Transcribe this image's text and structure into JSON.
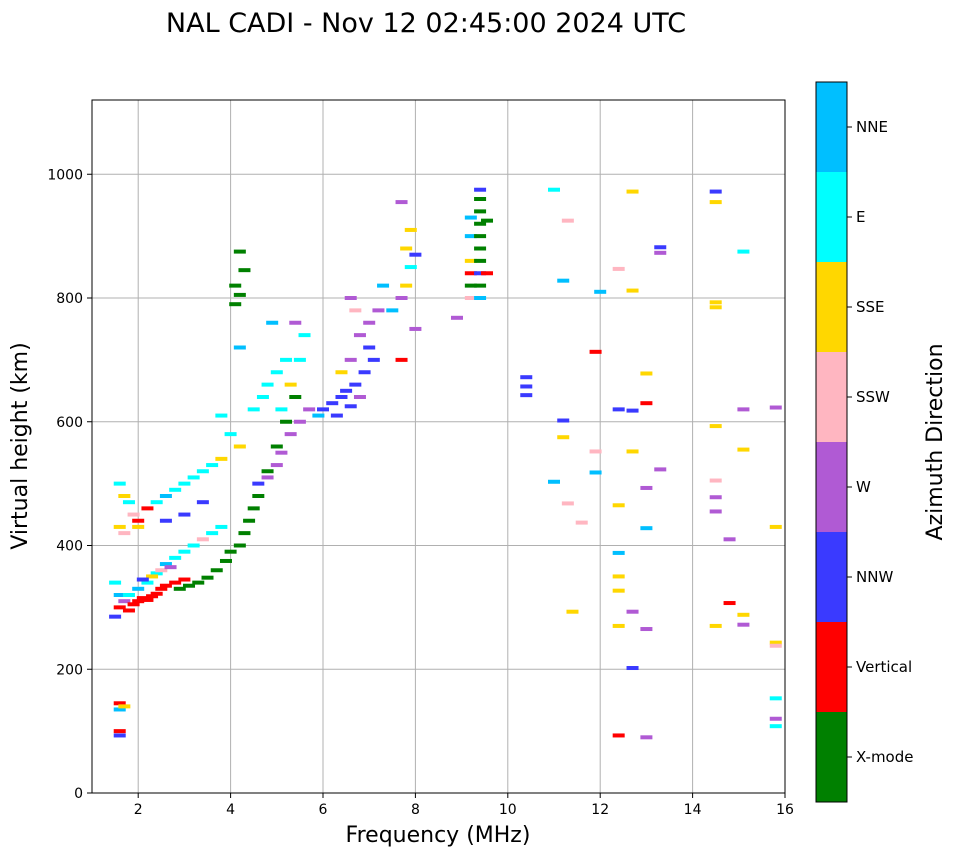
{
  "chart_data": {
    "type": "scatter",
    "title": "NAL CADI - Nov 12 02:45:00 2024 UTC",
    "xlabel": "Frequency (MHz)",
    "ylabel": "Virtual height (km)",
    "xlim": [
      1,
      16
    ],
    "ylim": [
      0,
      1120
    ],
    "xticks": [
      2,
      4,
      6,
      8,
      10,
      12,
      14,
      16
    ],
    "yticks": [
      0,
      200,
      400,
      600,
      800,
      1000
    ],
    "grid": true,
    "colorbar": {
      "title": "Azimuth Direction",
      "categories": [
        {
          "name": "X-mode",
          "color": "#008000"
        },
        {
          "name": "Vertical",
          "color": "#ff0000"
        },
        {
          "name": "NNW",
          "color": "#3a3aff"
        },
        {
          "name": "W",
          "color": "#b05ad4"
        },
        {
          "name": "SSW",
          "color": "#ffb6c1"
        },
        {
          "name": "SSE",
          "color": "#ffd700"
        },
        {
          "name": "E",
          "color": "#00ffff"
        },
        {
          "name": "NNE",
          "color": "#00bfff"
        }
      ]
    },
    "points": [
      {
        "x": 1.6,
        "y": 93,
        "c": "NNW"
      },
      {
        "x": 1.6,
        "y": 100,
        "c": "Vertical"
      },
      {
        "x": 1.6,
        "y": 135,
        "c": "NNE"
      },
      {
        "x": 1.6,
        "y": 145,
        "c": "Vertical"
      },
      {
        "x": 1.7,
        "y": 140,
        "c": "SSE"
      },
      {
        "x": 1.5,
        "y": 285,
        "c": "NNW"
      },
      {
        "x": 1.6,
        "y": 300,
        "c": "Vertical"
      },
      {
        "x": 1.6,
        "y": 320,
        "c": "NNE"
      },
      {
        "x": 1.5,
        "y": 340,
        "c": "E"
      },
      {
        "x": 1.7,
        "y": 310,
        "c": "W"
      },
      {
        "x": 1.8,
        "y": 295,
        "c": "Vertical"
      },
      {
        "x": 1.9,
        "y": 305,
        "c": "Vertical"
      },
      {
        "x": 2.0,
        "y": 310,
        "c": "Vertical"
      },
      {
        "x": 2.1,
        "y": 315,
        "c": "Vertical"
      },
      {
        "x": 2.2,
        "y": 312,
        "c": "Vertical"
      },
      {
        "x": 2.3,
        "y": 318,
        "c": "Vertical"
      },
      {
        "x": 2.4,
        "y": 322,
        "c": "Vertical"
      },
      {
        "x": 2.5,
        "y": 330,
        "c": "Vertical"
      },
      {
        "x": 2.6,
        "y": 335,
        "c": "Vertical"
      },
      {
        "x": 2.8,
        "y": 340,
        "c": "Vertical"
      },
      {
        "x": 3.0,
        "y": 345,
        "c": "Vertical"
      },
      {
        "x": 2.9,
        "y": 330,
        "c": "X-mode"
      },
      {
        "x": 3.1,
        "y": 335,
        "c": "X-mode"
      },
      {
        "x": 3.3,
        "y": 340,
        "c": "X-mode"
      },
      {
        "x": 3.5,
        "y": 348,
        "c": "X-mode"
      },
      {
        "x": 3.7,
        "y": 360,
        "c": "X-mode"
      },
      {
        "x": 3.9,
        "y": 375,
        "c": "X-mode"
      },
      {
        "x": 4.0,
        "y": 390,
        "c": "X-mode"
      },
      {
        "x": 4.2,
        "y": 400,
        "c": "X-mode"
      },
      {
        "x": 4.3,
        "y": 420,
        "c": "X-mode"
      },
      {
        "x": 4.4,
        "y": 440,
        "c": "X-mode"
      },
      {
        "x": 4.5,
        "y": 460,
        "c": "X-mode"
      },
      {
        "x": 4.6,
        "y": 480,
        "c": "X-mode"
      },
      {
        "x": 4.8,
        "y": 520,
        "c": "X-mode"
      },
      {
        "x": 5.0,
        "y": 560,
        "c": "X-mode"
      },
      {
        "x": 5.2,
        "y": 600,
        "c": "X-mode"
      },
      {
        "x": 5.4,
        "y": 640,
        "c": "X-mode"
      },
      {
        "x": 4.1,
        "y": 790,
        "c": "X-mode"
      },
      {
        "x": 4.1,
        "y": 820,
        "c": "X-mode"
      },
      {
        "x": 4.2,
        "y": 805,
        "c": "X-mode"
      },
      {
        "x": 4.3,
        "y": 845,
        "c": "X-mode"
      },
      {
        "x": 4.2,
        "y": 875,
        "c": "X-mode"
      },
      {
        "x": 1.8,
        "y": 320,
        "c": "E"
      },
      {
        "x": 2.0,
        "y": 330,
        "c": "NNE"
      },
      {
        "x": 2.2,
        "y": 340,
        "c": "E"
      },
      {
        "x": 2.4,
        "y": 355,
        "c": "E"
      },
      {
        "x": 2.6,
        "y": 370,
        "c": "NNE"
      },
      {
        "x": 2.8,
        "y": 380,
        "c": "E"
      },
      {
        "x": 3.0,
        "y": 390,
        "c": "E"
      },
      {
        "x": 3.2,
        "y": 400,
        "c": "E"
      },
      {
        "x": 3.4,
        "y": 410,
        "c": "SSW"
      },
      {
        "x": 3.6,
        "y": 420,
        "c": "E"
      },
      {
        "x": 3.8,
        "y": 430,
        "c": "E"
      },
      {
        "x": 2.5,
        "y": 360,
        "c": "SSW"
      },
      {
        "x": 2.7,
        "y": 365,
        "c": "W"
      },
      {
        "x": 2.3,
        "y": 350,
        "c": "SSE"
      },
      {
        "x": 2.1,
        "y": 345,
        "c": "NNW"
      },
      {
        "x": 1.6,
        "y": 500,
        "c": "E"
      },
      {
        "x": 1.7,
        "y": 480,
        "c": "SSE"
      },
      {
        "x": 1.8,
        "y": 470,
        "c": "E"
      },
      {
        "x": 1.9,
        "y": 450,
        "c": "SSW"
      },
      {
        "x": 2.0,
        "y": 440,
        "c": "Vertical"
      },
      {
        "x": 2.2,
        "y": 460,
        "c": "Vertical"
      },
      {
        "x": 2.4,
        "y": 470,
        "c": "E"
      },
      {
        "x": 2.6,
        "y": 480,
        "c": "NNE"
      },
      {
        "x": 2.8,
        "y": 490,
        "c": "E"
      },
      {
        "x": 3.0,
        "y": 500,
        "c": "E"
      },
      {
        "x": 3.2,
        "y": 510,
        "c": "E"
      },
      {
        "x": 3.4,
        "y": 520,
        "c": "E"
      },
      {
        "x": 3.6,
        "y": 530,
        "c": "E"
      },
      {
        "x": 3.8,
        "y": 540,
        "c": "SSE"
      },
      {
        "x": 1.6,
        "y": 430,
        "c": "SSE"
      },
      {
        "x": 1.7,
        "y": 420,
        "c": "SSW"
      },
      {
        "x": 2.0,
        "y": 430,
        "c": "SSE"
      },
      {
        "x": 2.6,
        "y": 440,
        "c": "NNW"
      },
      {
        "x": 3.0,
        "y": 450,
        "c": "NNW"
      },
      {
        "x": 3.4,
        "y": 470,
        "c": "NNW"
      },
      {
        "x": 4.0,
        "y": 580,
        "c": "E"
      },
      {
        "x": 4.2,
        "y": 560,
        "c": "SSE"
      },
      {
        "x": 3.8,
        "y": 610,
        "c": "E"
      },
      {
        "x": 4.2,
        "y": 720,
        "c": "NNE"
      },
      {
        "x": 4.5,
        "y": 620,
        "c": "E"
      },
      {
        "x": 4.7,
        "y": 640,
        "c": "E"
      },
      {
        "x": 4.8,
        "y": 660,
        "c": "E"
      },
      {
        "x": 5.0,
        "y": 680,
        "c": "E"
      },
      {
        "x": 5.2,
        "y": 700,
        "c": "E"
      },
      {
        "x": 5.1,
        "y": 620,
        "c": "E"
      },
      {
        "x": 5.3,
        "y": 660,
        "c": "SSE"
      },
      {
        "x": 5.5,
        "y": 700,
        "c": "E"
      },
      {
        "x": 5.6,
        "y": 740,
        "c": "E"
      },
      {
        "x": 5.4,
        "y": 760,
        "c": "W"
      },
      {
        "x": 4.9,
        "y": 760,
        "c": "NNE"
      },
      {
        "x": 4.6,
        "y": 500,
        "c": "NNW"
      },
      {
        "x": 4.8,
        "y": 510,
        "c": "W"
      },
      {
        "x": 5.0,
        "y": 530,
        "c": "W"
      },
      {
        "x": 5.1,
        "y": 550,
        "c": "W"
      },
      {
        "x": 5.3,
        "y": 580,
        "c": "W"
      },
      {
        "x": 5.5,
        "y": 600,
        "c": "W"
      },
      {
        "x": 5.7,
        "y": 620,
        "c": "W"
      },
      {
        "x": 5.9,
        "y": 610,
        "c": "NNE"
      },
      {
        "x": 6.0,
        "y": 620,
        "c": "NNW"
      },
      {
        "x": 6.2,
        "y": 630,
        "c": "NNW"
      },
      {
        "x": 6.4,
        "y": 640,
        "c": "NNW"
      },
      {
        "x": 6.5,
        "y": 650,
        "c": "NNW"
      },
      {
        "x": 6.7,
        "y": 660,
        "c": "NNW"
      },
      {
        "x": 6.9,
        "y": 680,
        "c": "NNW"
      },
      {
        "x": 7.1,
        "y": 700,
        "c": "NNW"
      },
      {
        "x": 6.3,
        "y": 610,
        "c": "NNW"
      },
      {
        "x": 6.6,
        "y": 625,
        "c": "NNW"
      },
      {
        "x": 6.8,
        "y": 640,
        "c": "W"
      },
      {
        "x": 7.0,
        "y": 720,
        "c": "NNW"
      },
      {
        "x": 6.4,
        "y": 680,
        "c": "SSE"
      },
      {
        "x": 6.6,
        "y": 700,
        "c": "W"
      },
      {
        "x": 6.8,
        "y": 740,
        "c": "W"
      },
      {
        "x": 7.0,
        "y": 760,
        "c": "W"
      },
      {
        "x": 7.2,
        "y": 780,
        "c": "W"
      },
      {
        "x": 6.7,
        "y": 780,
        "c": "SSW"
      },
      {
        "x": 6.6,
        "y": 800,
        "c": "W"
      },
      {
        "x": 7.3,
        "y": 820,
        "c": "NNE"
      },
      {
        "x": 7.7,
        "y": 700,
        "c": "Vertical"
      },
      {
        "x": 7.5,
        "y": 780,
        "c": "NNE"
      },
      {
        "x": 7.7,
        "y": 800,
        "c": "W"
      },
      {
        "x": 7.8,
        "y": 820,
        "c": "SSE"
      },
      {
        "x": 7.9,
        "y": 850,
        "c": "E"
      },
      {
        "x": 8.0,
        "y": 870,
        "c": "NNW"
      },
      {
        "x": 7.8,
        "y": 880,
        "c": "SSE"
      },
      {
        "x": 7.9,
        "y": 910,
        "c": "SSE"
      },
      {
        "x": 7.7,
        "y": 955,
        "c": "W"
      },
      {
        "x": 8.0,
        "y": 750,
        "c": "W"
      },
      {
        "x": 8.9,
        "y": 768,
        "c": "W"
      },
      {
        "x": 9.2,
        "y": 800,
        "c": "SSW"
      },
      {
        "x": 9.2,
        "y": 820,
        "c": "X-mode"
      },
      {
        "x": 9.2,
        "y": 840,
        "c": "Vertical"
      },
      {
        "x": 9.2,
        "y": 860,
        "c": "SSE"
      },
      {
        "x": 9.2,
        "y": 900,
        "c": "NNE"
      },
      {
        "x": 9.2,
        "y": 930,
        "c": "NNE"
      },
      {
        "x": 9.4,
        "y": 800,
        "c": "NNE"
      },
      {
        "x": 9.4,
        "y": 820,
        "c": "X-mode"
      },
      {
        "x": 9.4,
        "y": 840,
        "c": "NNW"
      },
      {
        "x": 9.4,
        "y": 860,
        "c": "X-mode"
      },
      {
        "x": 9.4,
        "y": 880,
        "c": "X-mode"
      },
      {
        "x": 9.4,
        "y": 900,
        "c": "X-mode"
      },
      {
        "x": 9.4,
        "y": 920,
        "c": "X-mode"
      },
      {
        "x": 9.4,
        "y": 940,
        "c": "X-mode"
      },
      {
        "x": 9.4,
        "y": 960,
        "c": "X-mode"
      },
      {
        "x": 9.4,
        "y": 975,
        "c": "NNW"
      },
      {
        "x": 9.55,
        "y": 840,
        "c": "Vertical"
      },
      {
        "x": 9.55,
        "y": 925,
        "c": "X-mode"
      },
      {
        "x": 10.4,
        "y": 643,
        "c": "NNW"
      },
      {
        "x": 10.4,
        "y": 657,
        "c": "NNW"
      },
      {
        "x": 10.4,
        "y": 672,
        "c": "NNW"
      },
      {
        "x": 11.0,
        "y": 975,
        "c": "E"
      },
      {
        "x": 11.2,
        "y": 828,
        "c": "NNE"
      },
      {
        "x": 11.3,
        "y": 925,
        "c": "SSW"
      },
      {
        "x": 11.2,
        "y": 602,
        "c": "NNW"
      },
      {
        "x": 11.2,
        "y": 575,
        "c": "SSE"
      },
      {
        "x": 11.0,
        "y": 503,
        "c": "NNE"
      },
      {
        "x": 11.3,
        "y": 468,
        "c": "SSW"
      },
      {
        "x": 11.6,
        "y": 437,
        "c": "SSW"
      },
      {
        "x": 11.4,
        "y": 293,
        "c": "SSE"
      },
      {
        "x": 11.9,
        "y": 713,
        "c": "Vertical"
      },
      {
        "x": 12.0,
        "y": 810,
        "c": "NNE"
      },
      {
        "x": 11.9,
        "y": 552,
        "c": "SSW"
      },
      {
        "x": 11.9,
        "y": 518,
        "c": "NNE"
      },
      {
        "x": 12.4,
        "y": 847,
        "c": "SSW"
      },
      {
        "x": 12.4,
        "y": 620,
        "c": "NNW"
      },
      {
        "x": 12.4,
        "y": 465,
        "c": "SSE"
      },
      {
        "x": 12.4,
        "y": 388,
        "c": "NNE"
      },
      {
        "x": 12.4,
        "y": 350,
        "c": "SSE"
      },
      {
        "x": 12.4,
        "y": 327,
        "c": "SSE"
      },
      {
        "x": 12.4,
        "y": 270,
        "c": "SSE"
      },
      {
        "x": 12.4,
        "y": 93,
        "c": "Vertical"
      },
      {
        "x": 12.7,
        "y": 972,
        "c": "SSE"
      },
      {
        "x": 12.7,
        "y": 812,
        "c": "SSE"
      },
      {
        "x": 12.7,
        "y": 618,
        "c": "NNW"
      },
      {
        "x": 12.7,
        "y": 552,
        "c": "SSE"
      },
      {
        "x": 12.7,
        "y": 293,
        "c": "W"
      },
      {
        "x": 12.7,
        "y": 202,
        "c": "NNW"
      },
      {
        "x": 13.0,
        "y": 678,
        "c": "SSE"
      },
      {
        "x": 13.0,
        "y": 630,
        "c": "Vertical"
      },
      {
        "x": 13.0,
        "y": 493,
        "c": "W"
      },
      {
        "x": 13.0,
        "y": 428,
        "c": "NNE"
      },
      {
        "x": 13.0,
        "y": 265,
        "c": "W"
      },
      {
        "x": 13.0,
        "y": 90,
        "c": "W"
      },
      {
        "x": 13.3,
        "y": 882,
        "c": "NNW"
      },
      {
        "x": 13.3,
        "y": 873,
        "c": "W"
      },
      {
        "x": 13.3,
        "y": 523,
        "c": "W"
      },
      {
        "x": 14.5,
        "y": 972,
        "c": "NNW"
      },
      {
        "x": 14.5,
        "y": 955,
        "c": "SSE"
      },
      {
        "x": 14.5,
        "y": 793,
        "c": "SSE"
      },
      {
        "x": 14.5,
        "y": 785,
        "c": "SSE"
      },
      {
        "x": 14.5,
        "y": 593,
        "c": "SSE"
      },
      {
        "x": 14.5,
        "y": 505,
        "c": "SSW"
      },
      {
        "x": 14.5,
        "y": 478,
        "c": "W"
      },
      {
        "x": 14.5,
        "y": 455,
        "c": "W"
      },
      {
        "x": 14.5,
        "y": 270,
        "c": "SSE"
      },
      {
        "x": 14.8,
        "y": 410,
        "c": "W"
      },
      {
        "x": 14.8,
        "y": 307,
        "c": "Vertical"
      },
      {
        "x": 15.1,
        "y": 875,
        "c": "E"
      },
      {
        "x": 15.1,
        "y": 620,
        "c": "W"
      },
      {
        "x": 15.1,
        "y": 555,
        "c": "SSE"
      },
      {
        "x": 15.1,
        "y": 288,
        "c": "SSE"
      },
      {
        "x": 15.1,
        "y": 272,
        "c": "W"
      },
      {
        "x": 15.8,
        "y": 623,
        "c": "W"
      },
      {
        "x": 15.8,
        "y": 430,
        "c": "SSE"
      },
      {
        "x": 15.8,
        "y": 243,
        "c": "SSE"
      },
      {
        "x": 15.8,
        "y": 238,
        "c": "SSW"
      },
      {
        "x": 15.8,
        "y": 153,
        "c": "E"
      },
      {
        "x": 15.8,
        "y": 120,
        "c": "W"
      },
      {
        "x": 15.8,
        "y": 108,
        "c": "E"
      }
    ]
  }
}
